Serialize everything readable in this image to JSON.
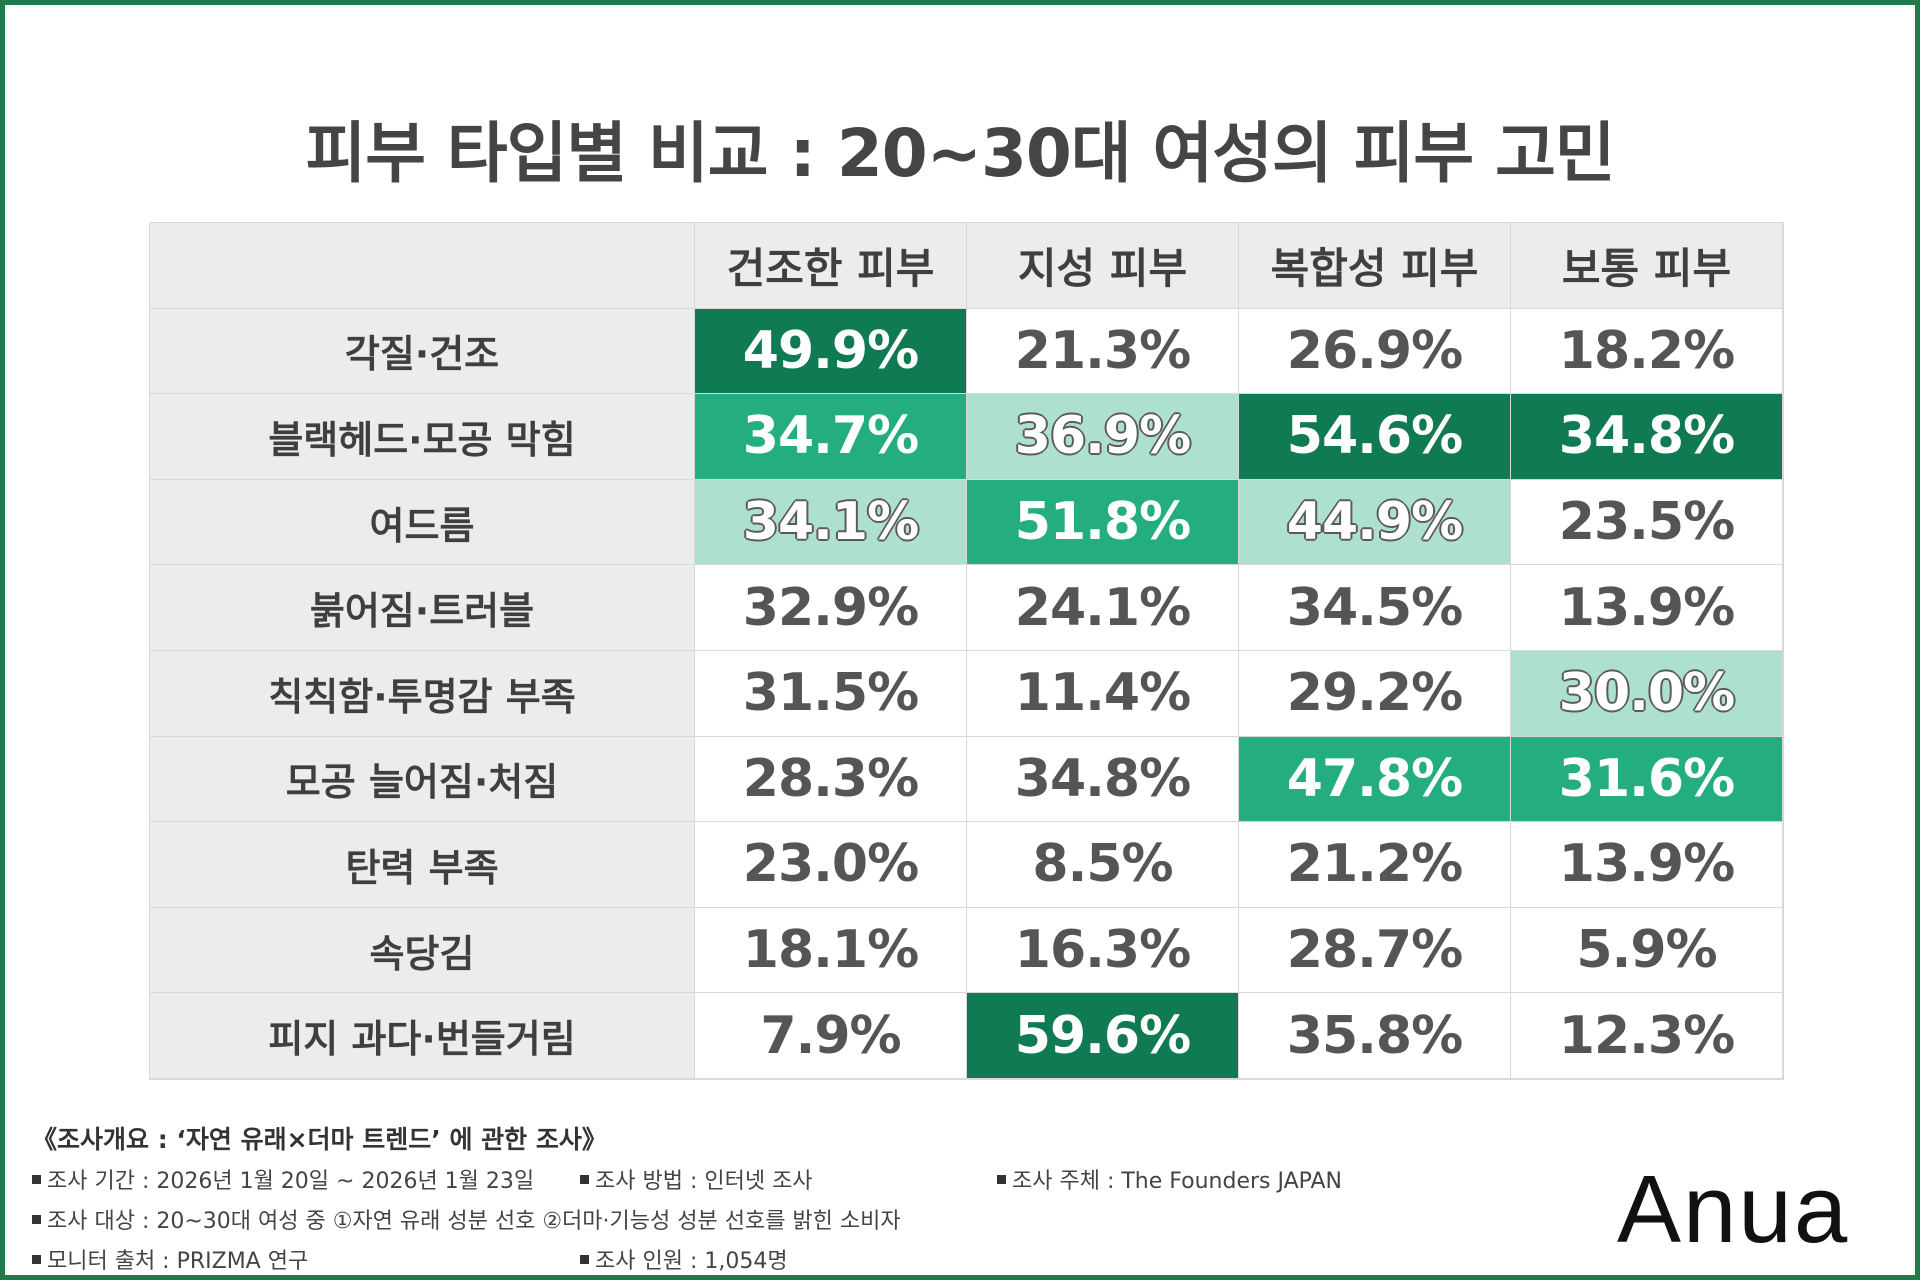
{
  "header": {
    "title": "피부 타입별 비교 : 20~30대 여성의 피부 고민"
  },
  "table": {
    "columns": [
      "건조한 피부",
      "지성 피부",
      "복합성 피부",
      "보통 피부"
    ],
    "palette": {
      "dark": "#107a52",
      "mid": "#24ad80",
      "light": "#ade0cf",
      "plain": "#ffffff"
    },
    "rows": [
      {
        "label": "각질·건조",
        "cells": [
          "49.9%",
          "21.3%",
          "26.9%",
          "18.2%"
        ],
        "shades": [
          "dark",
          "plain",
          "plain",
          "plain"
        ]
      },
      {
        "label": "블랙헤드·모공 막힘",
        "cells": [
          "34.7%",
          "36.9%",
          "54.6%",
          "34.8%"
        ],
        "shades": [
          "mid",
          "light",
          "dark",
          "dark"
        ]
      },
      {
        "label": "여드름",
        "cells": [
          "34.1%",
          "51.8%",
          "44.9%",
          "23.5%"
        ],
        "shades": [
          "light",
          "mid",
          "light",
          "plain"
        ]
      },
      {
        "label": "붉어짐·트러블",
        "cells": [
          "32.9%",
          "24.1%",
          "34.5%",
          "13.9%"
        ],
        "shades": [
          "plain",
          "plain",
          "plain",
          "plain"
        ]
      },
      {
        "label": "칙칙함·투명감 부족",
        "cells": [
          "31.5%",
          "11.4%",
          "29.2%",
          "30.0%"
        ],
        "shades": [
          "plain",
          "plain",
          "plain",
          "light"
        ]
      },
      {
        "label": "모공 늘어짐·처짐",
        "cells": [
          "28.3%",
          "34.8%",
          "47.8%",
          "31.6%"
        ],
        "shades": [
          "plain",
          "plain",
          "mid",
          "mid"
        ]
      },
      {
        "label": "탄력 부족",
        "cells": [
          "23.0%",
          "8.5%",
          "21.2%",
          "13.9%"
        ],
        "shades": [
          "plain",
          "plain",
          "plain",
          "plain"
        ]
      },
      {
        "label": "속당김",
        "cells": [
          "18.1%",
          "16.3%",
          "28.7%",
          "5.9%"
        ],
        "shades": [
          "plain",
          "plain",
          "plain",
          "plain"
        ]
      },
      {
        "label": "피지 과다·번들거림",
        "cells": [
          "7.9%",
          "59.6%",
          "35.8%",
          "12.3%"
        ],
        "shades": [
          "plain",
          "dark",
          "plain",
          "plain"
        ]
      }
    ]
  },
  "survey": {
    "heading": "《조사개요 : ‘자연 유래×더마 트렌드’ 에 관한 조사》",
    "items": [
      "조사 기간 : 2026년 1월 20일 ~ 2026년 1월 23일",
      "조사 방법 : 인터넷 조사",
      "조사 주체 : The Founders JAPAN",
      "조사 대상 : 20~30대 여성 중 ①자연 유래 성분 선호 ②더마·기능성 성분 선호를 밝힌 소비자",
      "모니터 출처 : PRIZMA 연구",
      "조사 인원 : 1,054명"
    ]
  },
  "brand": "Anua"
}
